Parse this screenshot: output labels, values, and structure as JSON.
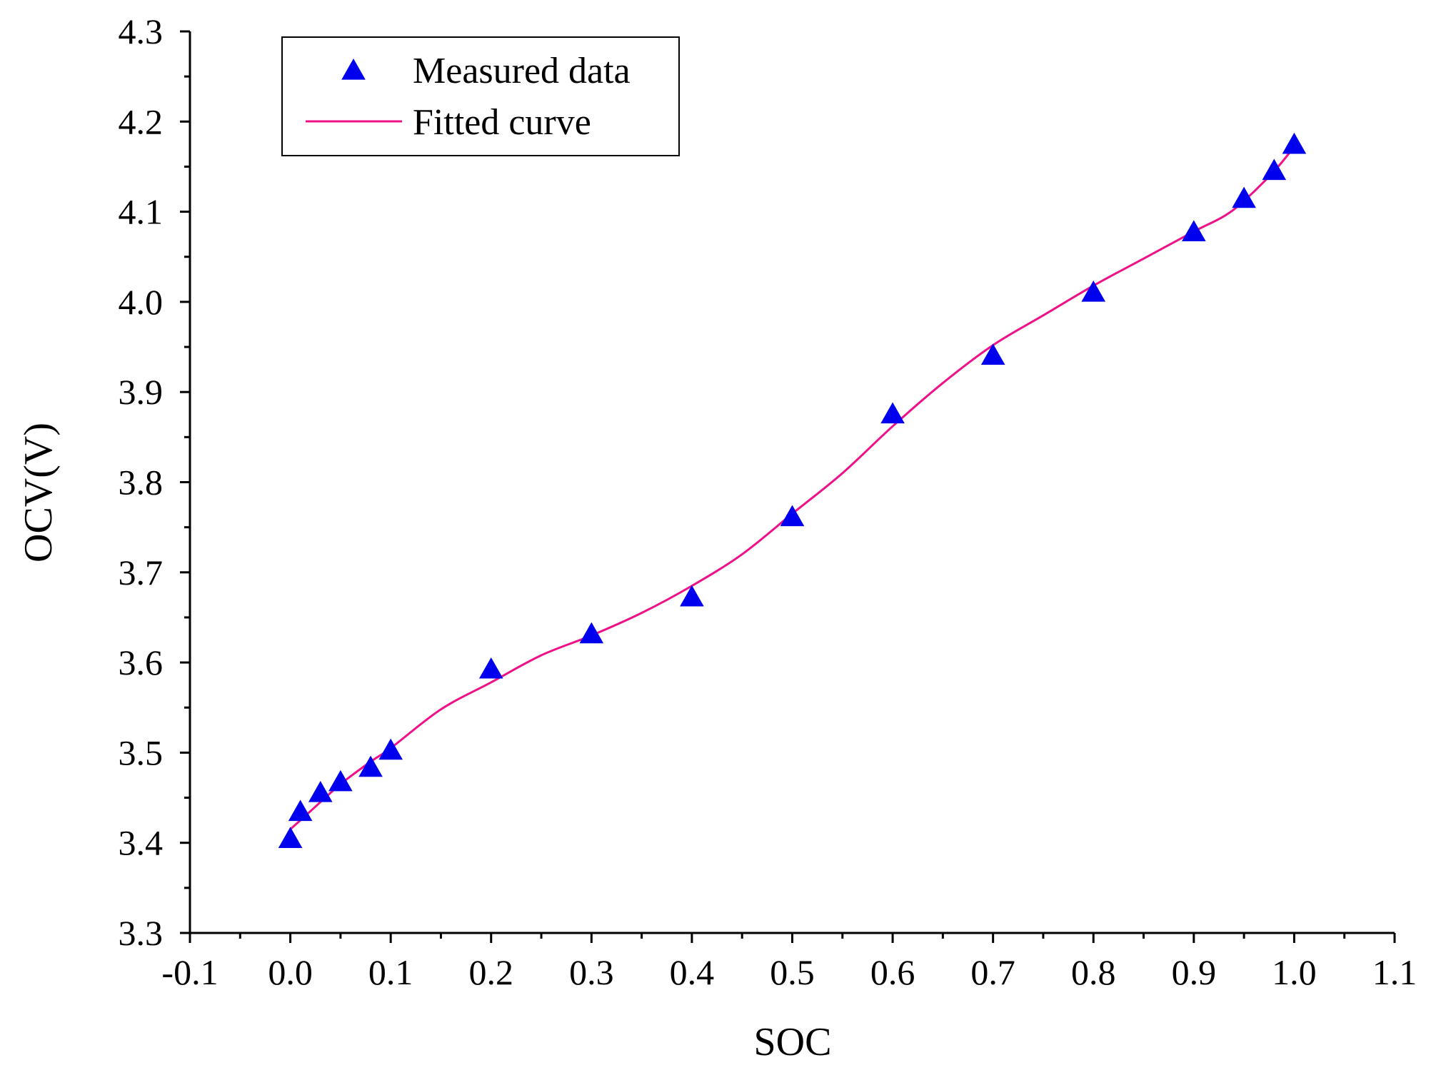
{
  "chart_data": {
    "type": "line",
    "title": "",
    "xlabel": "SOC",
    "ylabel": "OCV(V)",
    "xlim": [
      -0.1,
      1.1
    ],
    "ylim": [
      3.3,
      4.3
    ],
    "xticks": [
      "-0.1",
      "0.0",
      "0.1",
      "0.2",
      "0.3",
      "0.4",
      "0.5",
      "0.6",
      "0.7",
      "0.8",
      "0.9",
      "1.0",
      "1.1"
    ],
    "yticks": [
      "3.3",
      "3.4",
      "3.5",
      "3.6",
      "3.7",
      "3.8",
      "3.9",
      "4.0",
      "4.1",
      "4.2",
      "4.3"
    ],
    "xtick_values": [
      -0.1,
      0.0,
      0.1,
      0.2,
      0.3,
      0.4,
      0.5,
      0.6,
      0.7,
      0.8,
      0.9,
      1.0,
      1.1
    ],
    "ytick_values": [
      3.3,
      3.4,
      3.5,
      3.6,
      3.7,
      3.8,
      3.9,
      4.0,
      4.1,
      4.2,
      4.3
    ],
    "grid": false,
    "legend_position": "top-left",
    "series": [
      {
        "name": "Measured data",
        "kind": "scatter",
        "marker": "triangle",
        "color": "#0000ee",
        "x": [
          0.0,
          0.01,
          0.03,
          0.05,
          0.08,
          0.1,
          0.2,
          0.3,
          0.4,
          0.5,
          0.6,
          0.7,
          0.8,
          0.9,
          0.95,
          0.98,
          1.0
        ],
        "y": [
          3.405,
          3.435,
          3.456,
          3.468,
          3.484,
          3.503,
          3.593,
          3.632,
          3.673,
          3.762,
          3.876,
          3.941,
          4.011,
          4.078,
          4.115,
          4.146,
          4.175
        ]
      },
      {
        "name": "Fitted curve",
        "kind": "line",
        "color": "#ee1188",
        "x": [
          0.0,
          0.02,
          0.05,
          0.08,
          0.1,
          0.15,
          0.2,
          0.25,
          0.3,
          0.35,
          0.4,
          0.45,
          0.5,
          0.55,
          0.6,
          0.65,
          0.7,
          0.75,
          0.8,
          0.85,
          0.9,
          0.93,
          0.95,
          0.98,
          1.0
        ],
        "y": [
          3.415,
          3.435,
          3.465,
          3.49,
          3.505,
          3.548,
          3.578,
          3.608,
          3.63,
          3.655,
          3.685,
          3.72,
          3.765,
          3.81,
          3.862,
          3.91,
          3.952,
          3.985,
          4.018,
          4.048,
          4.078,
          4.095,
          4.112,
          4.145,
          4.172
        ]
      }
    ]
  }
}
